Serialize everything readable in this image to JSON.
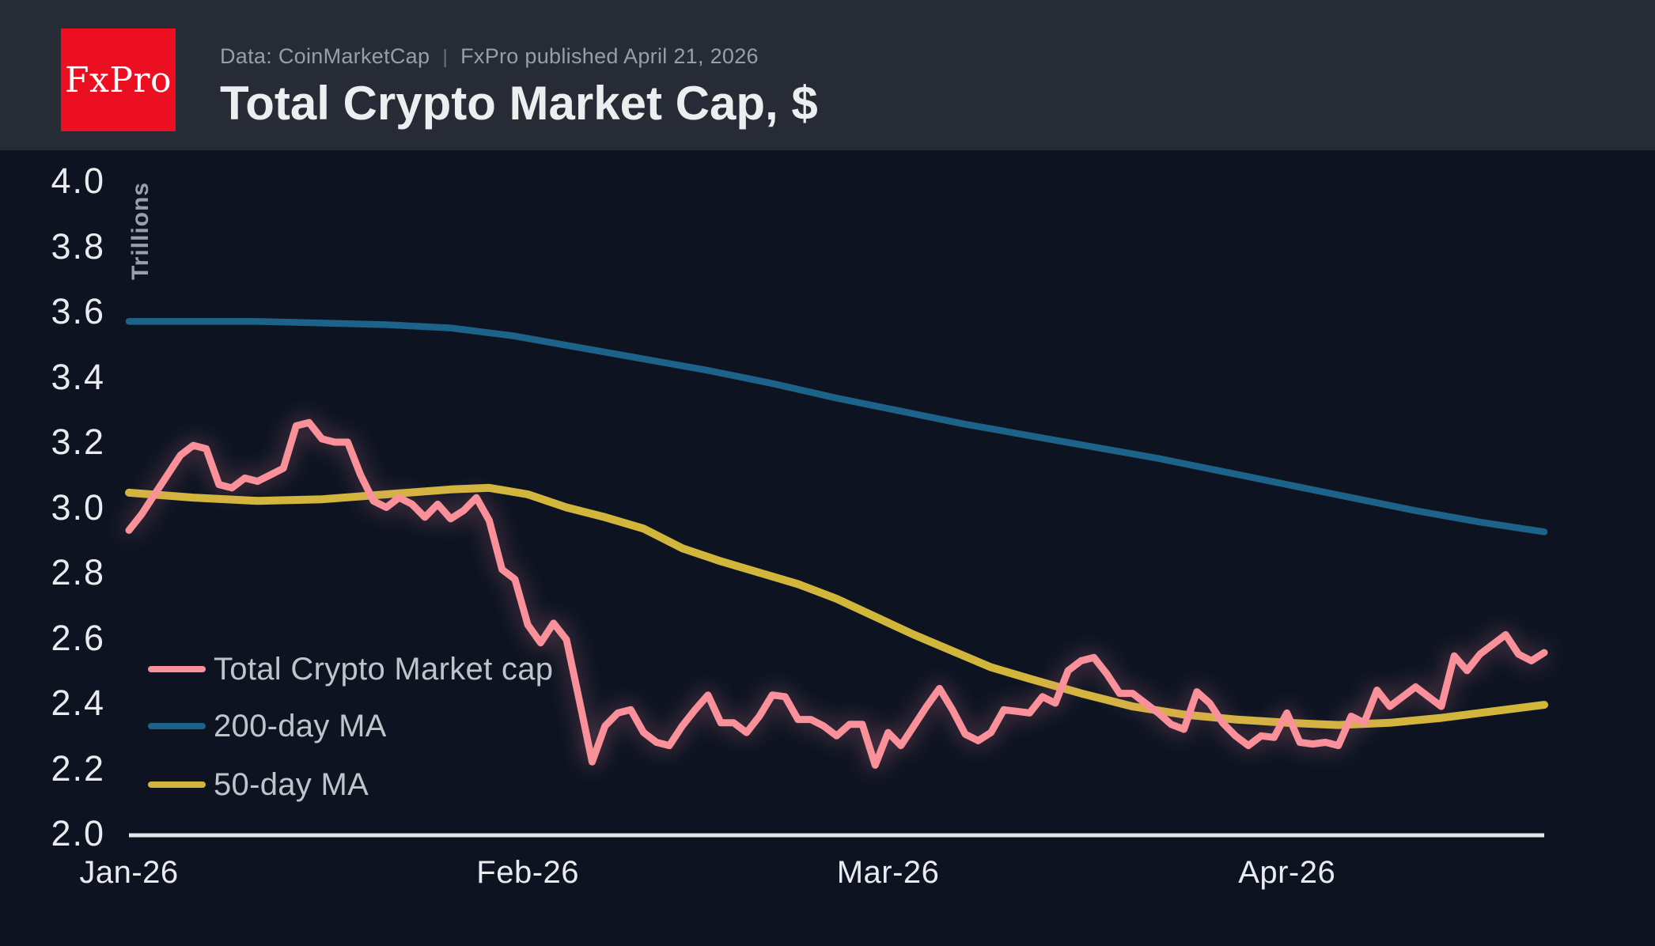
{
  "header": {
    "logo_text": "FxPro",
    "source": "Data: CoinMarketCap",
    "separator": "|",
    "published": "FxPro published April 21, 2026",
    "title": "Total Crypto Market Cap, $"
  },
  "colors": {
    "background": "#0d1321",
    "header_background": "#262b36",
    "logo_red": "#ec0f22",
    "axis_line": "#e6e8ea",
    "tick_label": "#e9ebee",
    "legend_text": "#c0c4ca",
    "y_axis_title_color": "#99a0a9",
    "total_market_cap": "#f9909a",
    "total_market_cap_glow": "#f2849c",
    "ma200": "#1d6389",
    "ma50": "#d2b63c"
  },
  "chart_data": {
    "type": "line",
    "title": "Total Crypto Market Cap, $",
    "y_axis_title": "Trillions",
    "ylim": [
      2.0,
      4.0
    ],
    "grid": false,
    "legend_position": "middle-left",
    "y_ticks": [
      {
        "label": "4.0",
        "value": 4.0
      },
      {
        "label": "3.8",
        "value": 3.8
      },
      {
        "label": "3.6",
        "value": 3.6
      },
      {
        "label": "3.4",
        "value": 3.4
      },
      {
        "label": "3.2",
        "value": 3.2
      },
      {
        "label": "3.0",
        "value": 3.0
      },
      {
        "label": "2.8",
        "value": 2.8
      },
      {
        "label": "2.6",
        "value": 2.6
      },
      {
        "label": "2.4",
        "value": 2.4
      },
      {
        "label": "2.2",
        "value": 2.2
      },
      {
        "label": "2.0",
        "value": 2.0
      }
    ],
    "x_ticks": [
      {
        "label": "Jan-26",
        "day": 0
      },
      {
        "label": "Feb-26",
        "day": 31
      },
      {
        "label": "Mar-26",
        "day": 59
      },
      {
        "label": "Apr-26",
        "day": 90
      }
    ],
    "x_unit": "days since Jan 1, 2026",
    "x_range_days": [
      0,
      110
    ],
    "series": [
      {
        "name": "Total Crypto Market cap",
        "color_key": "total_market_cap",
        "glow": true,
        "stroke_width": 9,
        "start_day": 0,
        "day_step": 1,
        "values": [
          2.93,
          2.98,
          3.04,
          3.1,
          3.16,
          3.19,
          3.18,
          3.07,
          3.06,
          3.09,
          3.08,
          3.1,
          3.12,
          3.25,
          3.26,
          3.21,
          3.2,
          3.2,
          3.1,
          3.02,
          3.0,
          3.03,
          3.01,
          2.97,
          3.01,
          2.965,
          2.99,
          3.03,
          2.96,
          2.81,
          2.78,
          2.64,
          2.585,
          2.645,
          2.595,
          2.41,
          2.22,
          2.33,
          2.37,
          2.38,
          2.31,
          2.28,
          2.27,
          2.33,
          2.38,
          2.425,
          2.34,
          2.34,
          2.31,
          2.36,
          2.425,
          2.42,
          2.35,
          2.35,
          2.33,
          2.3,
          2.335,
          2.335,
          2.21,
          2.31,
          2.27,
          2.33,
          2.39,
          2.445,
          2.38,
          2.305,
          2.285,
          2.31,
          2.38,
          2.375,
          2.37,
          2.42,
          2.4,
          2.5,
          2.53,
          2.54,
          2.49,
          2.43,
          2.43,
          2.4,
          2.37,
          2.335,
          2.32,
          2.435,
          2.4,
          2.34,
          2.3,
          2.27,
          2.3,
          2.295,
          2.37,
          2.28,
          2.275,
          2.28,
          2.27,
          2.36,
          2.34,
          2.44,
          2.39,
          2.42,
          2.45,
          2.42,
          2.39,
          2.545,
          2.5,
          2.55,
          2.58,
          2.61,
          2.55,
          2.53,
          2.555
        ]
      },
      {
        "name": "200-day MA",
        "color_key": "ma200",
        "glow": false,
        "stroke_width": 8.5,
        "days": [
          0,
          5,
          10,
          15,
          20,
          25,
          30,
          35,
          40,
          45,
          50,
          55,
          60,
          65,
          70,
          75,
          80,
          85,
          90,
          95,
          100,
          105,
          110
        ],
        "values": [
          3.57,
          3.57,
          3.57,
          3.565,
          3.56,
          3.55,
          3.525,
          3.49,
          3.455,
          3.42,
          3.38,
          3.335,
          3.295,
          3.255,
          3.22,
          3.185,
          3.15,
          3.11,
          3.07,
          3.03,
          2.99,
          2.955,
          2.925
        ]
      },
      {
        "name": "50-day MA",
        "color_key": "ma50",
        "glow": false,
        "stroke_width": 10,
        "days": [
          0,
          5,
          10,
          15,
          20,
          25,
          28,
          31,
          34,
          37,
          40,
          43,
          46,
          49,
          52,
          55,
          58,
          61,
          64,
          67,
          70,
          74,
          78,
          82,
          86,
          90,
          94,
          98,
          102,
          106,
          110
        ],
        "values": [
          3.045,
          3.03,
          3.02,
          3.025,
          3.04,
          3.055,
          3.06,
          3.04,
          3.0,
          2.97,
          2.935,
          2.875,
          2.835,
          2.8,
          2.765,
          2.72,
          2.665,
          2.61,
          2.56,
          2.51,
          2.475,
          2.43,
          2.39,
          2.365,
          2.35,
          2.34,
          2.333,
          2.34,
          2.355,
          2.375,
          2.395
        ]
      }
    ]
  }
}
